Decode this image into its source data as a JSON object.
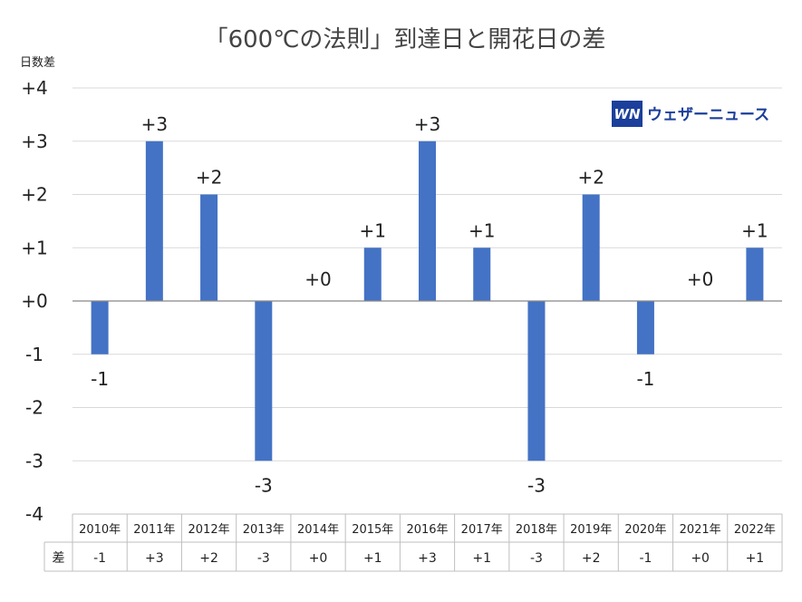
{
  "chart_data": {
    "type": "bar",
    "title": "「600℃の法則」到達日と開花日の差",
    "ylabel": "日数差",
    "xlabel": "",
    "categories": [
      "2010年",
      "2011年",
      "2012年",
      "2013年",
      "2014年",
      "2015年",
      "2016年",
      "2017年",
      "2018年",
      "2019年",
      "2020年",
      "2021年",
      "2022年"
    ],
    "values": [
      -1,
      3,
      2,
      -3,
      0,
      1,
      3,
      1,
      -3,
      2,
      -1,
      0,
      1
    ],
    "data_labels": [
      "-1",
      "+3",
      "+2",
      "-3",
      "+0",
      "+1",
      "+3",
      "+1",
      "-3",
      "+2",
      "-1",
      "+0",
      "+1"
    ],
    "ylim": [
      -4,
      4
    ],
    "y_ticks": [
      4,
      3,
      2,
      1,
      0,
      -1,
      -2,
      -3,
      -4
    ],
    "y_tick_labels": [
      "+4",
      "+3",
      "+2",
      "+1",
      "+0",
      "-1",
      "-2",
      "-3",
      "-4"
    ],
    "grid": true,
    "bar_color": "#4472c4",
    "table_row_label": "差"
  },
  "brand": {
    "logo_mark": "WN",
    "name": "ウェザーニュース",
    "color": "#1b3f9b"
  }
}
